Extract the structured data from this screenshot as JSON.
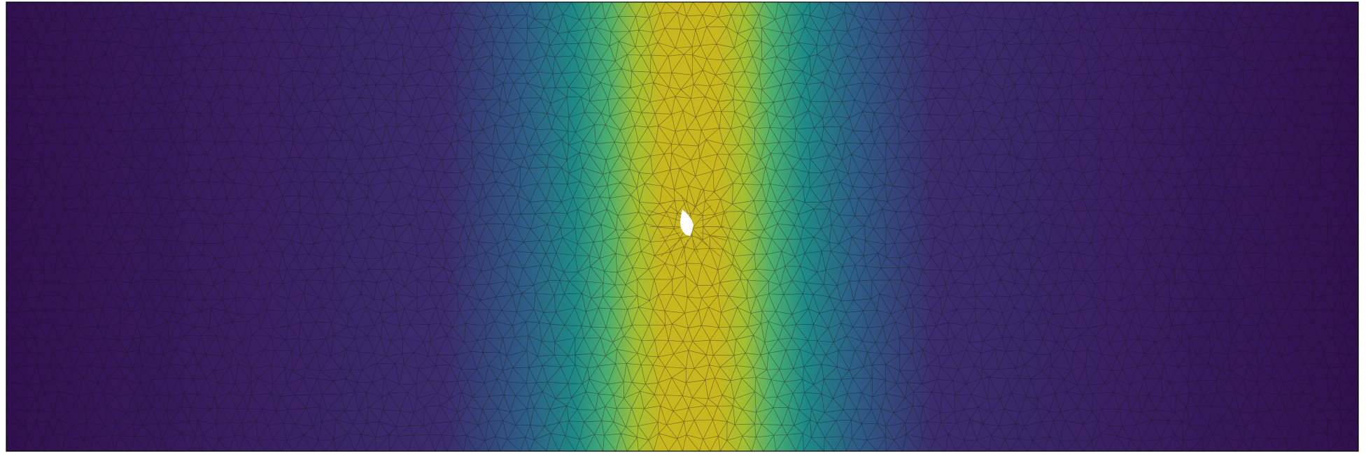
{
  "figure": {
    "kind": "finite-element triangular mesh with scalar field colouring",
    "colormap": "viridis",
    "colormap_stops": [
      "#31104f",
      "#3b2c6e",
      "#2d5f87",
      "#1f8a87",
      "#4eb06e",
      "#a3bf33",
      "#c9b71f"
    ],
    "mesh_line_color": "#111111",
    "hole_color": "#ffffff",
    "border_color": "#000000",
    "field_shape": "vertical band of high values centred in the domain, with a small hole at the centre",
    "field_band": {
      "center_fraction": 0.506,
      "width_fraction": 0.085
    }
  }
}
